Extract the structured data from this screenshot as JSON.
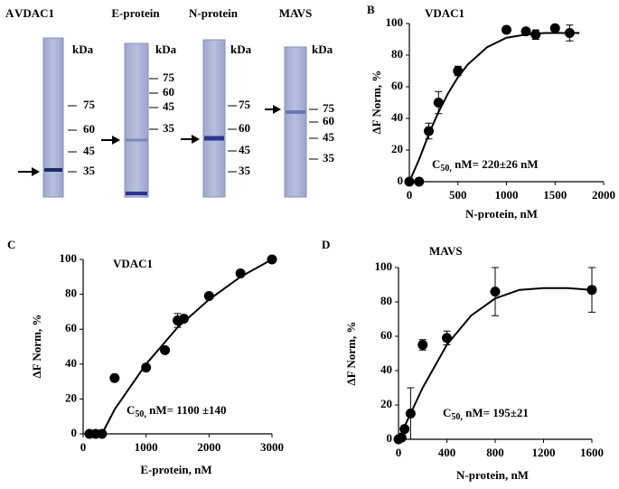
{
  "gel_panel": {
    "label": "A",
    "lanes": [
      {
        "name": "VDAC1",
        "unit": "kDa",
        "markers": [
          "75",
          "60",
          "45",
          "35"
        ]
      },
      {
        "name": "E-protein",
        "unit": "kDa",
        "markers": [
          "75",
          "60",
          "45",
          "35"
        ]
      },
      {
        "name": "N-protein",
        "unit": "kDa",
        "markers": [
          "75",
          "60",
          "45",
          "35"
        ]
      },
      {
        "name": "MAVS",
        "unit": "kDa",
        "markers": [
          "75",
          "60",
          "45",
          "35"
        ]
      }
    ]
  },
  "chart_data": [
    {
      "type": "scatter",
      "panel": "B",
      "title": "VDAC1",
      "xlabel": "N-protein, nM",
      "ylabel": "ΔF Norm, %",
      "annotation": [
        "C",
        "50,",
        " nM= 220±26 nM"
      ],
      "x": [
        0,
        100,
        200,
        300,
        500,
        1000,
        1200,
        1300,
        1500,
        1650
      ],
      "values": [
        0,
        0,
        32,
        50,
        70,
        96,
        95,
        93,
        97,
        94
      ],
      "errors": [
        null,
        null,
        5,
        7,
        3,
        null,
        null,
        3,
        null,
        5
      ],
      "fit": {
        "x": [
          0,
          100,
          200,
          300,
          400,
          500,
          600,
          800,
          1000,
          1200,
          1400,
          1600,
          1750
        ],
        "values": [
          0,
          14,
          30,
          44,
          56,
          66,
          74,
          85,
          91,
          93,
          94,
          94,
          94
        ]
      },
      "xlim": [
        0,
        2000
      ],
      "xticks": [
        0,
        500,
        1000,
        1500,
        2000
      ],
      "ylim": [
        0,
        100
      ],
      "yticks": [
        0,
        20,
        40,
        60,
        80,
        100
      ],
      "color": "#000000"
    },
    {
      "type": "scatter",
      "panel": "C",
      "title": "VDAC1",
      "xlabel": "E-protein, nM",
      "ylabel": "ΔF Norm, %",
      "annotation": [
        "C",
        "50,",
        " nM= 1100 ±140"
      ],
      "x": [
        100,
        200,
        300,
        500,
        1000,
        1300,
        1500,
        1600,
        2000,
        2500,
        3000
      ],
      "values": [
        0,
        0,
        0,
        32,
        38,
        48,
        65,
        66,
        79,
        92,
        100
      ],
      "errors": [
        null,
        null,
        null,
        null,
        null,
        null,
        4,
        null,
        null,
        null,
        null
      ],
      "fit": {
        "x": [
          300,
          500,
          1000,
          1500,
          2000,
          2500,
          3000
        ],
        "values": [
          0,
          14,
          40,
          61,
          77,
          90,
          100
        ]
      },
      "xlim": [
        0,
        3000
      ],
      "xticks": [
        0,
        1000,
        2000,
        3000
      ],
      "ylim": [
        0,
        100
      ],
      "yticks": [
        0,
        20,
        40,
        60,
        80,
        100
      ],
      "color": "#000000"
    },
    {
      "type": "scatter",
      "panel": "D",
      "title": "MAVS",
      "xlabel": "N-protein, nM",
      "ylabel": "ΔF Norm, %",
      "annotation": [
        "C",
        "50,",
        " nM= 195±21"
      ],
      "x": [
        0,
        25,
        50,
        100,
        200,
        400,
        800,
        1600
      ],
      "values": [
        0,
        1,
        6,
        15,
        55,
        59,
        86,
        87
      ],
      "errors": [
        null,
        null,
        null,
        15,
        3,
        4,
        14,
        13
      ],
      "fit": {
        "x": [
          0,
          100,
          200,
          400,
          600,
          800,
          1000,
          1200,
          1400,
          1600
        ],
        "values": [
          0,
          15,
          30,
          55,
          72,
          82,
          87,
          88,
          88,
          87
        ]
      },
      "xlim": [
        0,
        1600
      ],
      "xticks": [
        0,
        400,
        800,
        1200,
        1600
      ],
      "ylim": [
        0,
        100
      ],
      "yticks": [
        0,
        20,
        40,
        60,
        80,
        100
      ],
      "color": "#000000"
    }
  ]
}
